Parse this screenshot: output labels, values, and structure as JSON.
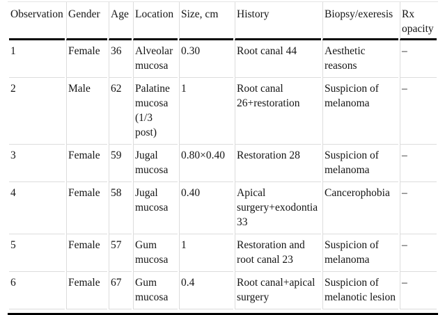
{
  "table": {
    "name": "patient-observations-table",
    "columns": [
      {
        "key": "observation",
        "label": "Observation"
      },
      {
        "key": "gender",
        "label": "Gender"
      },
      {
        "key": "age",
        "label": "Age"
      },
      {
        "key": "location",
        "label": "Location"
      },
      {
        "key": "size",
        "label": "Size, cm"
      },
      {
        "key": "history",
        "label": "History"
      },
      {
        "key": "biopsy",
        "label": "Biopsy/exeresis"
      },
      {
        "key": "rx",
        "label": "Rx opacity"
      }
    ],
    "rows": [
      [
        "1",
        "Female",
        "36",
        "Alveolar mucosa",
        "0.30",
        "Root canal 44",
        "Aesthetic reasons",
        "–"
      ],
      [
        "2",
        "Male",
        "62",
        "Palatine mucosa (1/3 post)",
        "1",
        "Root canal 26+restoration",
        "Suspicion of melanoma",
        "–"
      ],
      [
        "3",
        "Female",
        "59",
        "Jugal mucosa",
        "0.80×0.40",
        "Restoration 28",
        "Suspicion of melanoma",
        "–"
      ],
      [
        "4",
        "Female",
        "58",
        "Jugal mucosa",
        "0.40",
        "Apical surgery+exodontia 33",
        "Cancerophobia",
        "–"
      ],
      [
        "5",
        "Female",
        "57",
        "Gum mucosa",
        "1",
        "Restoration and root canal 23",
        "Suspicion of melanoma",
        "–"
      ],
      [
        "6",
        "Female",
        "67",
        "Gum mucosa",
        "0.4",
        "Root canal+apical surgery",
        "Suspicion of melanotic lesion",
        "–"
      ]
    ]
  },
  "colors": {
    "text": "#141414",
    "rule_heavy": "#000000",
    "rule_light": "#dcdcdc",
    "background": "#ffffff"
  }
}
